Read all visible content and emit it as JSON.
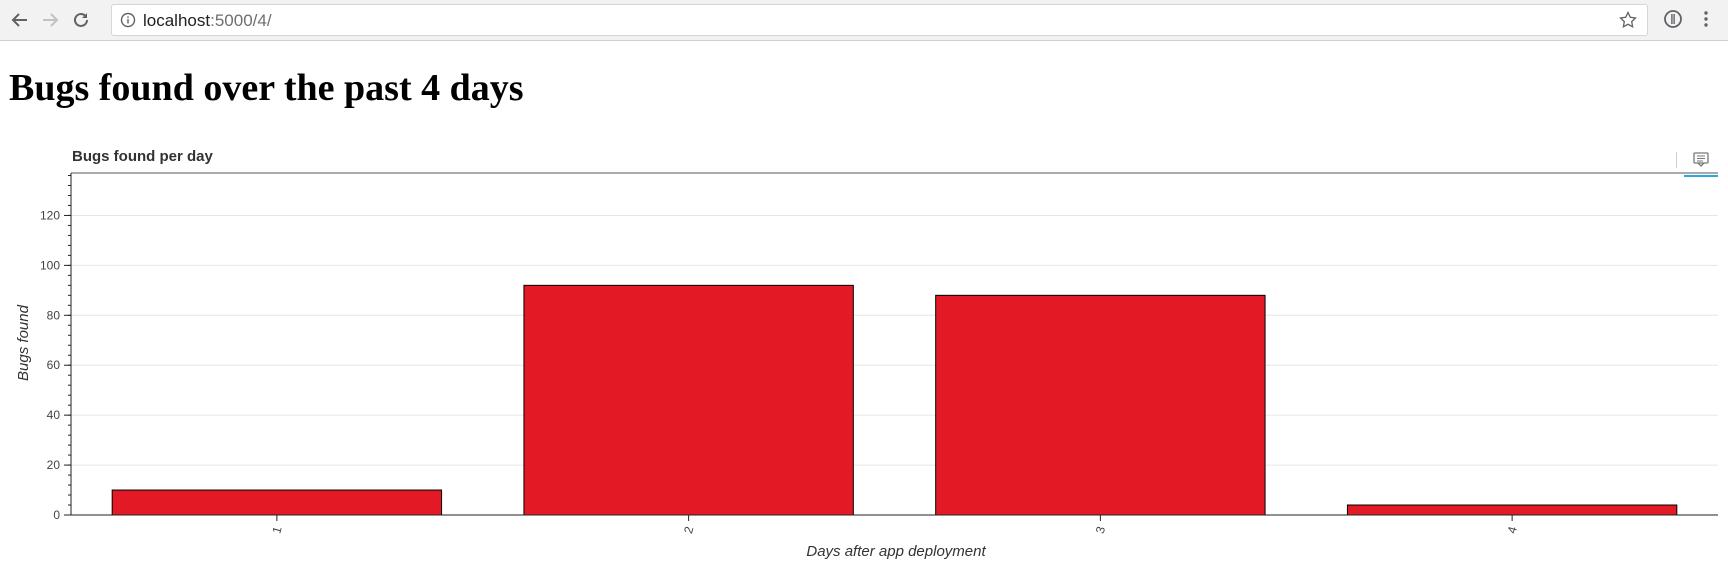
{
  "browser": {
    "url_host": "localhost",
    "url_path": ":5000/4/",
    "icons": [
      "back-arrow-icon",
      "forward-arrow-icon",
      "reload-icon",
      "info-icon",
      "star-icon",
      "extension-icon",
      "menu-icon"
    ]
  },
  "page": {
    "title": "Bugs found over the past 4 days"
  },
  "chart_data": {
    "type": "bar",
    "title": "Bugs found per day",
    "categories": [
      "1",
      "2",
      "3",
      "4"
    ],
    "values": [
      10,
      92,
      88,
      4
    ],
    "xlabel": "Days after app deployment",
    "ylabel": "Bugs found",
    "ylim": [
      0,
      137
    ],
    "yticks": [
      0,
      20,
      40,
      60,
      80,
      100,
      120
    ],
    "bar_color": "#e31a26",
    "bar_outline": "#000000",
    "grid": true,
    "toolbar_icon": "hover-comment-icon"
  }
}
